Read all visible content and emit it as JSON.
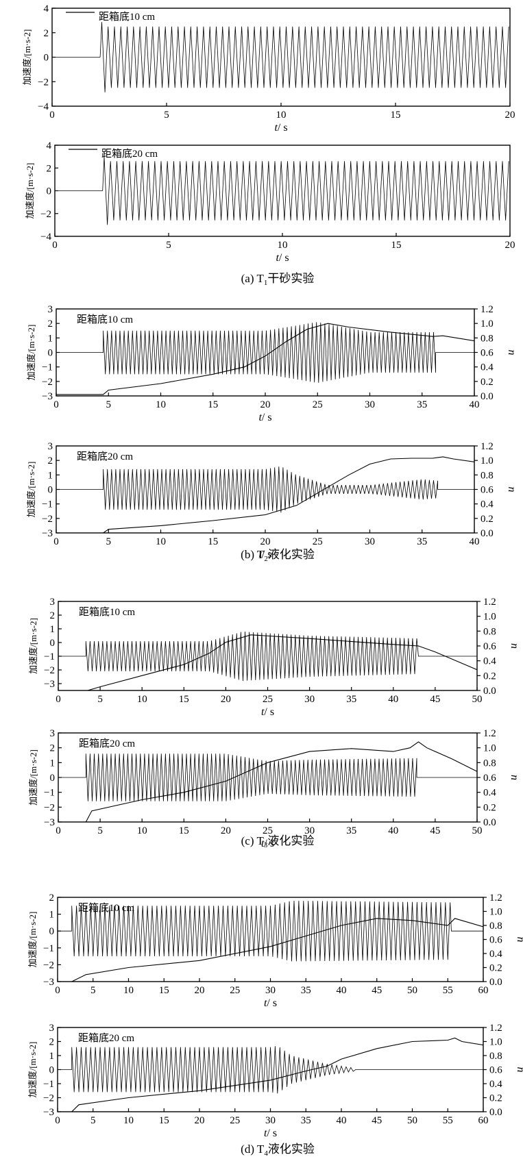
{
  "chart_data": [
    {
      "type": "line",
      "panel": "a",
      "position": "top",
      "legend": "距箱底10 cm",
      "legend_has_line": true,
      "ylabel": "加速度/[m·s-2]",
      "xlabel": "t",
      "xlabel_unit": "/ s",
      "xlim": [
        0,
        20
      ],
      "xticks": [
        0,
        5,
        10,
        15,
        20
      ],
      "ylim": [
        -4,
        4
      ],
      "yticks": [
        -4,
        -2,
        0,
        2,
        4
      ],
      "series": [
        {
          "kind": "acceleration",
          "onset_s": 2.1,
          "amplitude": 2.5,
          "cycles_per_s": 3.6,
          "baseline": 0
        }
      ]
    },
    {
      "type": "line",
      "panel": "a",
      "position": "bottom",
      "legend": "距箱底20 cm",
      "legend_has_line": true,
      "ylabel": "加速度/[m·s-2]",
      "xlabel": "t",
      "xlabel_unit": "/ s",
      "xlim": [
        0,
        20
      ],
      "xticks": [
        0,
        5,
        10,
        15,
        20
      ],
      "ylim": [
        -4,
        4
      ],
      "yticks": [
        -4,
        -2,
        0,
        2,
        4
      ],
      "series": [
        {
          "kind": "acceleration",
          "onset_s": 2.1,
          "amplitude": 2.6,
          "cycles_per_s": 3.6,
          "baseline": 0
        }
      ]
    },
    {
      "type": "line",
      "panel": "b",
      "position": "top",
      "legend": "距箱底10 cm",
      "ylabel": "加速度/[m·s-2]",
      "y2label": "n",
      "xlabel": "t",
      "xlabel_unit": "/ s",
      "xlim": [
        0,
        40
      ],
      "xticks": [
        0,
        5,
        10,
        15,
        20,
        25,
        30,
        35,
        40
      ],
      "ylim": [
        -3,
        3
      ],
      "yticks": [
        -3,
        -2,
        -1,
        0,
        1,
        2,
        3
      ],
      "y2lim": [
        0.0,
        1.2
      ],
      "y2ticks": [
        "0.0",
        "0.2",
        "0.4",
        "0.6",
        "0.8",
        "1.0",
        "1.2"
      ],
      "series": [
        {
          "kind": "acceleration",
          "baseline": 0,
          "cycles_per_s": 2.5,
          "envelope": [
            [
              4.5,
              1.5
            ],
            [
              20,
              1.5
            ],
            [
              25,
              2.1
            ],
            [
              30,
              1.4
            ],
            [
              36.3,
              1.4
            ]
          ],
          "end_s": 36.3
        },
        {
          "kind": "pore_pressure_ratio",
          "points": [
            [
              0,
              0.02
            ],
            [
              4.5,
              0.02
            ],
            [
              5,
              0.08
            ],
            [
              10,
              0.17
            ],
            [
              15,
              0.3
            ],
            [
              18,
              0.4
            ],
            [
              20,
              0.55
            ],
            [
              22,
              0.75
            ],
            [
              24,
              0.92
            ],
            [
              26,
              1.0
            ],
            [
              28,
              0.95
            ],
            [
              32,
              0.88
            ],
            [
              36,
              0.82
            ],
            [
              37,
              0.83
            ],
            [
              40,
              0.76
            ]
          ]
        }
      ]
    },
    {
      "type": "line",
      "panel": "b",
      "position": "bottom",
      "legend": "距箱底20 cm",
      "ylabel": "加速度/[m·s-2]",
      "y2label": "n",
      "xlabel": "t",
      "xlabel_unit": "/ s",
      "xlim": [
        0,
        40
      ],
      "xticks": [
        0,
        5,
        10,
        15,
        20,
        25,
        30,
        35,
        40
      ],
      "ylim": [
        -3,
        3
      ],
      "yticks": [
        -3,
        -2,
        -1,
        0,
        1,
        2,
        3
      ],
      "y2lim": [
        0.0,
        1.2
      ],
      "y2ticks": [
        "0.0",
        "0.2",
        "0.4",
        "0.6",
        "0.8",
        "1.0",
        "1.2"
      ],
      "series": [
        {
          "kind": "acceleration",
          "baseline": 0,
          "cycles_per_s": 2.5,
          "envelope": [
            [
              4.5,
              1.4
            ],
            [
              20,
              1.4
            ],
            [
              21.5,
              1.6
            ],
            [
              23,
              1.0
            ],
            [
              26,
              0.3
            ],
            [
              30,
              0.3
            ],
            [
              35,
              0.7
            ],
            [
              36.5,
              0.6
            ]
          ],
          "end_s": 36.5
        },
        {
          "kind": "pore_pressure_ratio",
          "points": [
            [
              0,
              0.0
            ],
            [
              4.5,
              0.0
            ],
            [
              5,
              0.05
            ],
            [
              10,
              0.1
            ],
            [
              15,
              0.17
            ],
            [
              20,
              0.25
            ],
            [
              23,
              0.38
            ],
            [
              25,
              0.55
            ],
            [
              28,
              0.8
            ],
            [
              30,
              0.95
            ],
            [
              32,
              1.02
            ],
            [
              34,
              1.03
            ],
            [
              36,
              1.03
            ],
            [
              37,
              1.05
            ],
            [
              38,
              1.02
            ],
            [
              40,
              0.98
            ]
          ]
        }
      ]
    },
    {
      "type": "line",
      "panel": "c",
      "position": "top",
      "legend": "距箱底10 cm",
      "ylabel": "加速度/[m·s-2]",
      "y2label": "n",
      "xlabel": "t",
      "xlabel_unit": "/ s",
      "xlim": [
        0,
        50
      ],
      "xticks": [
        0,
        5,
        10,
        15,
        20,
        25,
        30,
        35,
        40,
        45,
        50
      ],
      "ylim": [
        -3.5,
        3
      ],
      "yticks": [
        -3,
        -2,
        -1,
        0,
        1,
        2,
        3
      ],
      "y2lim": [
        0.0,
        1.2
      ],
      "y2ticks": [
        "0.0",
        "0.2",
        "0.4",
        "0.6",
        "0.8",
        "1.0",
        "1.2"
      ],
      "series": [
        {
          "kind": "acceleration",
          "baseline": -1,
          "cycles_per_s": 2.0,
          "envelope": [
            [
              3.3,
              1.1
            ],
            [
              18,
              1.1
            ],
            [
              22,
              1.8
            ],
            [
              30,
              1.5
            ],
            [
              43,
              1.3
            ]
          ],
          "end_s": 43
        },
        {
          "kind": "pore_pressure_ratio",
          "points": [
            [
              3.5,
              0.0
            ],
            [
              5,
              0.05
            ],
            [
              10,
              0.2
            ],
            [
              15,
              0.35
            ],
            [
              18,
              0.5
            ],
            [
              20,
              0.65
            ],
            [
              23,
              0.75
            ],
            [
              30,
              0.7
            ],
            [
              40,
              0.62
            ],
            [
              43,
              0.6
            ],
            [
              45,
              0.52
            ],
            [
              50,
              0.28
            ]
          ]
        }
      ]
    },
    {
      "type": "line",
      "panel": "c",
      "position": "bottom",
      "legend": "距箱底20 cm",
      "ylabel": "加速度/[m·s-2]",
      "y2label": "n",
      "xlabel": "t",
      "xlabel_unit": "/ s",
      "xlim": [
        0,
        50
      ],
      "xticks": [
        0,
        5,
        10,
        15,
        20,
        25,
        30,
        35,
        40,
        45,
        50
      ],
      "ylim": [
        -3,
        3
      ],
      "yticks": [
        -3,
        -2,
        -1,
        0,
        1,
        2,
        3
      ],
      "y2lim": [
        0.0,
        1.2
      ],
      "y2ticks": [
        "0.0",
        "0.2",
        "0.4",
        "0.6",
        "0.8",
        "1.0",
        "1.2"
      ],
      "series": [
        {
          "kind": "acceleration",
          "baseline": 0,
          "cycles_per_s": 2.0,
          "envelope": [
            [
              3.3,
              1.6
            ],
            [
              20,
              1.6
            ],
            [
              25,
              1.1
            ],
            [
              30,
              1.2
            ],
            [
              42.8,
              1.3
            ]
          ],
          "end_s": 42.8
        },
        {
          "kind": "pore_pressure_ratio",
          "points": [
            [
              3.3,
              0.0
            ],
            [
              4,
              0.15
            ],
            [
              10,
              0.3
            ],
            [
              15,
              0.4
            ],
            [
              20,
              0.55
            ],
            [
              25,
              0.8
            ],
            [
              30,
              0.95
            ],
            [
              35,
              0.99
            ],
            [
              40,
              0.95
            ],
            [
              42,
              1.0
            ],
            [
              43,
              1.08
            ],
            [
              44,
              1.0
            ],
            [
              47,
              0.85
            ],
            [
              50,
              0.68
            ]
          ]
        }
      ]
    },
    {
      "type": "line",
      "panel": "d",
      "position": "top",
      "legend": "距箱底10 cm",
      "ylabel": "加速度/[m·s-2]",
      "y2label": "n",
      "xlabel": "t",
      "xlabel_unit": "/ s",
      "xlim": [
        0,
        60
      ],
      "xticks": [
        0,
        5,
        10,
        15,
        20,
        25,
        30,
        35,
        40,
        45,
        50,
        55,
        60
      ],
      "ylim": [
        -3,
        2
      ],
      "yticks": [
        -3,
        -2,
        -1,
        0,
        1,
        2
      ],
      "y2lim": [
        0.0,
        1.2
      ],
      "y2ticks": [
        "0.0",
        "0.2",
        "0.4",
        "0.6",
        "0.8",
        "1.0",
        "1.2"
      ],
      "series": [
        {
          "kind": "acceleration",
          "baseline": 0,
          "cycles_per_s": 1.5,
          "envelope": [
            [
              2,
              1.5
            ],
            [
              30,
              1.5
            ],
            [
              33,
              1.8
            ],
            [
              55.5,
              1.7
            ]
          ],
          "end_s": 55.5
        },
        {
          "kind": "pore_pressure_ratio",
          "points": [
            [
              2,
              0.0
            ],
            [
              4,
              0.1
            ],
            [
              10,
              0.2
            ],
            [
              20,
              0.3
            ],
            [
              30,
              0.5
            ],
            [
              35,
              0.65
            ],
            [
              40,
              0.8
            ],
            [
              45,
              0.9
            ],
            [
              50,
              0.87
            ],
            [
              55,
              0.8
            ],
            [
              56,
              0.9
            ],
            [
              60,
              0.78
            ]
          ]
        }
      ]
    },
    {
      "type": "line",
      "panel": "d",
      "position": "bottom",
      "legend": "距箱底20 cm",
      "ylabel": "加速度/[m·s-2]",
      "y2label": "n",
      "xlabel": "t",
      "xlabel_unit": "/ s",
      "xlim": [
        0,
        60
      ],
      "xticks": [
        0,
        5,
        10,
        15,
        20,
        25,
        30,
        35,
        40,
        45,
        50,
        55,
        60
      ],
      "ylim": [
        -3,
        3
      ],
      "yticks": [
        -3,
        -2,
        -1,
        0,
        1,
        2,
        3
      ],
      "y2lim": [
        0.0,
        1.2
      ],
      "y2ticks": [
        "0.0",
        "0.2",
        "0.4",
        "0.6",
        "0.8",
        "1.0",
        "1.2"
      ],
      "series": [
        {
          "kind": "acceleration",
          "baseline": 0,
          "cycles_per_s": 1.5,
          "envelope": [
            [
              2,
              1.6
            ],
            [
              30,
              1.6
            ],
            [
              31,
              1.7
            ],
            [
              33,
              1.0
            ],
            [
              38,
              0.4
            ],
            [
              42,
              0.1
            ]
          ],
          "end_s": 42
        },
        {
          "kind": "pore_pressure_ratio",
          "points": [
            [
              2,
              0.0
            ],
            [
              3,
              0.1
            ],
            [
              10,
              0.2
            ],
            [
              20,
              0.3
            ],
            [
              30,
              0.45
            ],
            [
              35,
              0.58
            ],
            [
              38,
              0.65
            ],
            [
              40,
              0.75
            ],
            [
              45,
              0.9
            ],
            [
              50,
              1.0
            ],
            [
              55,
              1.02
            ],
            [
              56,
              1.05
            ],
            [
              57,
              1.0
            ],
            [
              60,
              0.95
            ]
          ]
        }
      ]
    }
  ],
  "captions": [
    {
      "prefix": "(a) T",
      "sub": "1",
      "rest": "干砂实验"
    },
    {
      "prefix": "(b) T",
      "sub": "2",
      "rest": "液化实验"
    },
    {
      "prefix": "(c) T",
      "sub": "3",
      "rest": "液化实验"
    },
    {
      "prefix": "(d) T",
      "sub": "4",
      "rest": "液化实验"
    }
  ]
}
